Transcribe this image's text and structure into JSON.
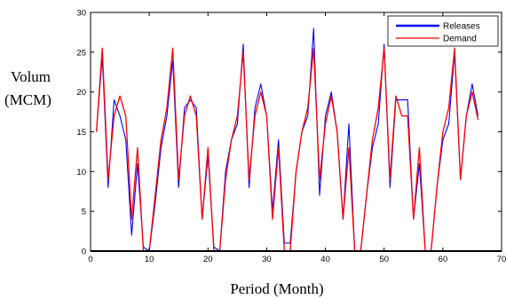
{
  "chart_data": {
    "type": "line",
    "title": "",
    "xlabel": "Period (Month)",
    "ylabel_line1": "Volum",
    "ylabel_line2": "(MCM)",
    "xlim": [
      0,
      70
    ],
    "ylim": [
      0,
      30
    ],
    "xticks": [
      0,
      10,
      20,
      30,
      40,
      50,
      60,
      70
    ],
    "xtick_labels": [
      "0",
      "10",
      "20",
      "30",
      "40",
      "50",
      "60",
      "70"
    ],
    "yticks": [
      0,
      5,
      10,
      15,
      20,
      25,
      30
    ],
    "ytick_labels": [
      "0",
      "5",
      "10",
      "15",
      "20",
      "25",
      "30"
    ],
    "grid": false,
    "legend_position": "top-right",
    "x": [
      1,
      2,
      3,
      4,
      5,
      6,
      7,
      8,
      9,
      10,
      11,
      12,
      13,
      14,
      15,
      16,
      17,
      18,
      19,
      20,
      21,
      22,
      23,
      24,
      25,
      26,
      27,
      28,
      29,
      30,
      31,
      32,
      33,
      34,
      35,
      36,
      37,
      38,
      39,
      40,
      41,
      42,
      43,
      44,
      45,
      46,
      47,
      48,
      49,
      50,
      51,
      52,
      53,
      54,
      55,
      56,
      57,
      58,
      59,
      60,
      61,
      62,
      63,
      64,
      65,
      66
    ],
    "series": [
      {
        "name": "Releases",
        "color": "#0000ff",
        "values": [
          15,
          24.5,
          8,
          19,
          17,
          14,
          2,
          11,
          0.5,
          0,
          6,
          13,
          17,
          24,
          8,
          18,
          19,
          18,
          4,
          12,
          0.5,
          0,
          10,
          14,
          16,
          26,
          8,
          18,
          21,
          17,
          5,
          14,
          1,
          1,
          10,
          15,
          17,
          28,
          7,
          17,
          20,
          15,
          4,
          16,
          0,
          0,
          7,
          13,
          16,
          26,
          8,
          19,
          19,
          19,
          4,
          11,
          0,
          0,
          8,
          14,
          16,
          25,
          9,
          17,
          21,
          17
        ]
      },
      {
        "name": "Demand",
        "color": "#ff0000",
        "values": [
          15,
          25.5,
          9,
          17,
          19.5,
          17,
          4,
          13,
          0,
          0,
          7,
          14,
          18,
          25.5,
          9,
          17,
          19.5,
          17,
          4,
          13,
          0,
          0,
          9,
          14,
          17,
          25,
          9,
          17,
          20,
          17,
          4,
          13,
          0,
          0,
          10,
          15,
          18,
          25.5,
          9,
          16,
          19.5,
          15,
          4,
          13,
          0,
          0,
          7,
          14,
          18,
          25.5,
          9,
          19.5,
          17,
          17,
          4,
          13,
          0,
          0,
          8,
          15,
          18,
          25.5,
          9,
          17,
          20,
          16.5
        ]
      }
    ]
  }
}
